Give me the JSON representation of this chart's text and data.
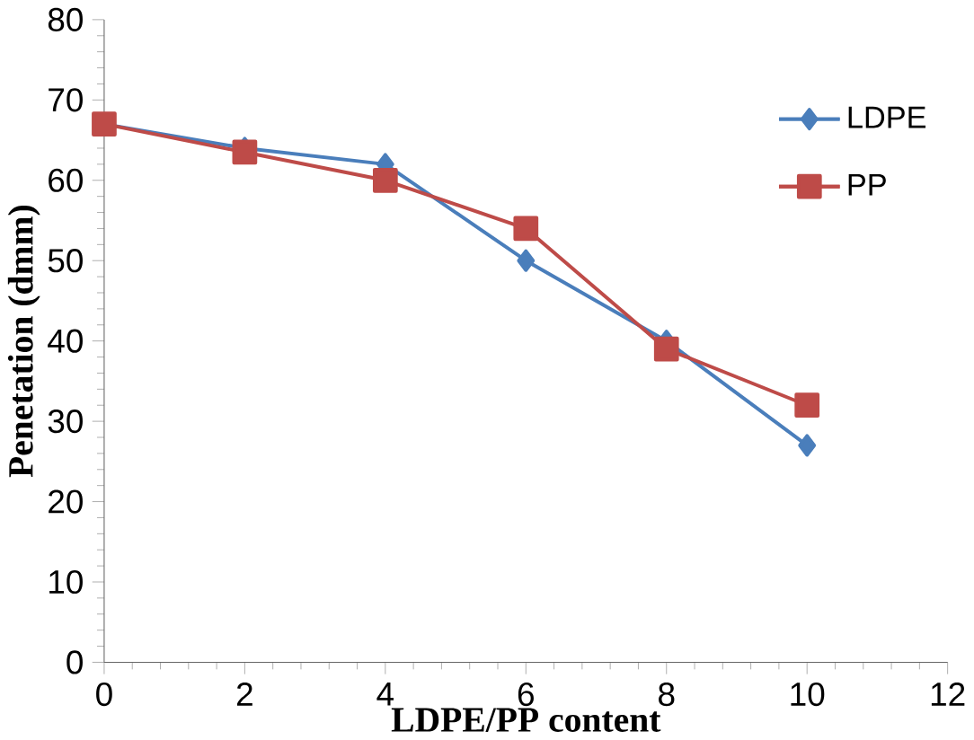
{
  "chart_data": {
    "type": "line",
    "xlabel": "LDPE/PP content",
    "ylabel": "Penetation (dmm)",
    "x": [
      0,
      2,
      4,
      6,
      8,
      10
    ],
    "series": [
      {
        "name": "LDPE",
        "color": "#4a7ebb",
        "marker": "diamond",
        "values": [
          67,
          64,
          62,
          50,
          40,
          27
        ]
      },
      {
        "name": "PP",
        "color": "#be4b48",
        "marker": "square",
        "values": [
          67,
          63.5,
          60,
          54,
          39,
          32
        ]
      }
    ],
    "xlim": [
      0,
      12
    ],
    "xticks": [
      0,
      2,
      4,
      6,
      8,
      10,
      12
    ],
    "ylim": [
      0,
      80
    ],
    "yticks": [
      0,
      10,
      20,
      30,
      40,
      50,
      60,
      70,
      80
    ],
    "grid": false,
    "legend": "top right",
    "line_style": "solid"
  }
}
